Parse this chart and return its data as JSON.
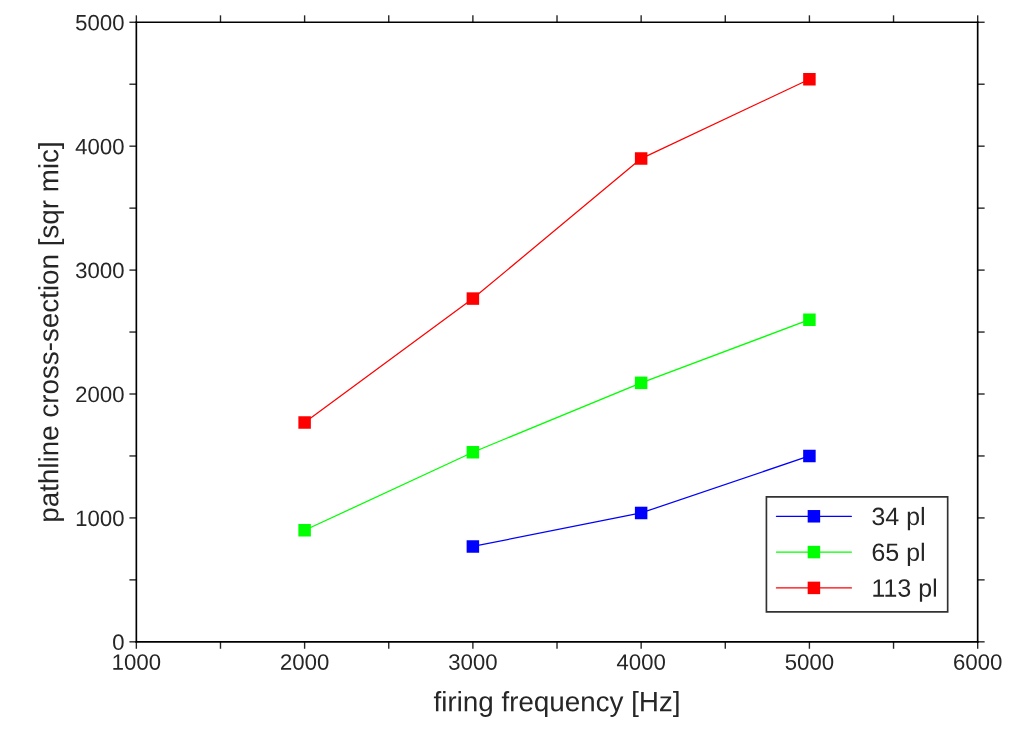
{
  "chart_data": {
    "type": "line",
    "xlabel": "firing frequency [Hz]",
    "ylabel": "pathline cross-section [sqr mic]",
    "xlim": [
      1000,
      6000
    ],
    "ylim": [
      0,
      5000
    ],
    "xticks": [
      1000,
      {
        "value": 1500,
        "label": null
      },
      2000,
      {
        "value": 2500,
        "label": null
      },
      3000,
      {
        "value": 3500,
        "label": null
      },
      4000,
      {
        "value": 4500,
        "label": null
      },
      5000,
      {
        "value": 5500,
        "label": null
      },
      6000
    ],
    "yticks": [
      0,
      {
        "value": 500,
        "label": null
      },
      1000,
      {
        "value": 1500,
        "label": null
      },
      2000,
      {
        "value": 2500,
        "label": null
      },
      3000,
      {
        "value": 3500,
        "label": null
      },
      4000,
      {
        "value": 4500,
        "label": null
      },
      5000
    ],
    "marker": "square",
    "line_style": "solid",
    "grid": false,
    "legend": "bottom right",
    "series": [
      {
        "name": "34 pl",
        "color": "#0000ff",
        "x": [
          3000,
          4000,
          5000
        ],
        "values": [
          770,
          1040,
          1500
        ]
      },
      {
        "name": "65 pl",
        "color": "#00ff00",
        "x": [
          2000,
          3000,
          4000,
          5000
        ],
        "values": [
          900,
          1530,
          2090,
          2600
        ]
      },
      {
        "name": "113 pl",
        "color": "#ff0000",
        "x": [
          2000,
          3000,
          4000,
          5000
        ],
        "values": [
          1770,
          2770,
          3900,
          4540
        ]
      }
    ]
  }
}
